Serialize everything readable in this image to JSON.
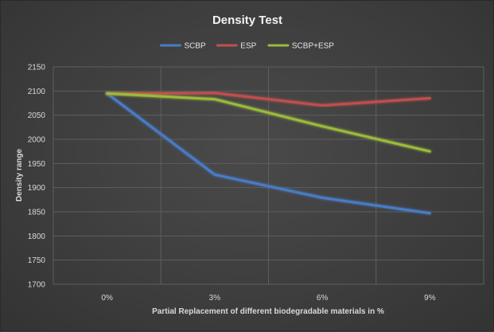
{
  "chart_data": {
    "type": "line",
    "title": "Density Test",
    "xlabel": "Partial Replacement of different biodegradable materials in %",
    "ylabel": "Density range",
    "categories": [
      "0%",
      "3%",
      "6%",
      "9%"
    ],
    "ylim": [
      1700,
      2150
    ],
    "yticks": [
      1700,
      1750,
      1800,
      1850,
      1900,
      1950,
      2000,
      2050,
      2100,
      2150
    ],
    "grid": true,
    "legend_position": "top-center",
    "series": [
      {
        "name": "SCBP",
        "color": "#4a7bc6",
        "values": [
          2095,
          1927,
          1879,
          1847
        ]
      },
      {
        "name": "ESP",
        "color": "#c0504d",
        "values": [
          2095,
          2096,
          2070,
          2085
        ]
      },
      {
        "name": "SCBP+ESP",
        "color": "#9bbb3b",
        "values": [
          2095,
          2083,
          2027,
          1975
        ]
      }
    ]
  }
}
